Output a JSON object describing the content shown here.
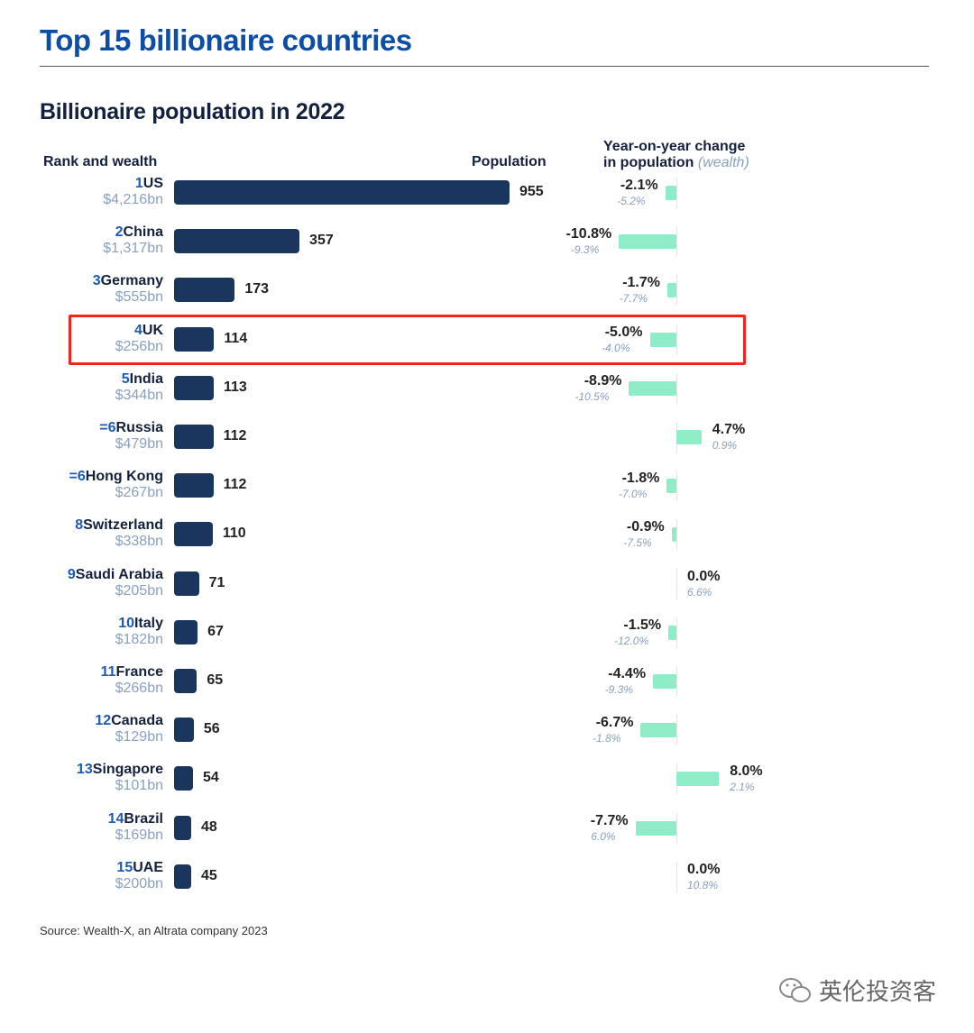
{
  "title": "Top 15 billionaire countries",
  "subtitle": "Billionaire population in 2022",
  "headers": {
    "rank_wealth": "Rank and wealth",
    "population": "Population",
    "yoy_line1": "Year-on-year change",
    "yoy_line2": "in population",
    "yoy_wealth": "(wealth)"
  },
  "source": "Source: Wealth-X, an Altrata company 2023",
  "watermark": "英伦投资客",
  "colors": {
    "title": "#0c4ea6",
    "bar": "#1a355e",
    "change_bar": "#8eecc6",
    "highlight": "#f5231b",
    "rank": "#1c5bb5",
    "wealth": "#8aa0bd"
  },
  "highlighted_country": "UK",
  "chart_data": {
    "type": "bar",
    "title": "Billionaire population in 2022",
    "categories": [
      "US",
      "China",
      "Germany",
      "UK",
      "India",
      "Russia",
      "Hong Kong",
      "Switzerland",
      "Saudi Arabia",
      "Italy",
      "France",
      "Canada",
      "Singapore",
      "Brazil",
      "UAE"
    ],
    "ranks": [
      "1",
      "2",
      "3",
      "4",
      "5",
      "=6",
      "=6",
      "8",
      "9",
      "10",
      "11",
      "12",
      "13",
      "14",
      "15"
    ],
    "wealth": [
      "$4,216bn",
      "$1,317bn",
      "$555bn",
      "$256bn",
      "$344bn",
      "$479bn",
      "$267bn",
      "$338bn",
      "$205bn",
      "$182bn",
      "$266bn",
      "$129bn",
      "$101bn",
      "$169bn",
      "$200bn"
    ],
    "series": [
      {
        "name": "Population",
        "values": [
          955,
          357,
          173,
          114,
          113,
          112,
          112,
          110,
          71,
          67,
          65,
          56,
          54,
          48,
          45
        ]
      },
      {
        "name": "Year-on-year change in population (%)",
        "values": [
          -2.1,
          -10.8,
          -1.7,
          -5.0,
          -8.9,
          4.7,
          -1.8,
          -0.9,
          0.0,
          -1.5,
          -4.4,
          -6.7,
          8.0,
          -7.7,
          0.0
        ]
      },
      {
        "name": "Year-on-year change in wealth (%)",
        "values": [
          -5.2,
          -9.3,
          -7.7,
          -4.0,
          -10.5,
          0.9,
          -7.0,
          -7.5,
          6.6,
          -12.0,
          -9.3,
          -1.8,
          2.1,
          6.0,
          10.8
        ]
      }
    ]
  }
}
